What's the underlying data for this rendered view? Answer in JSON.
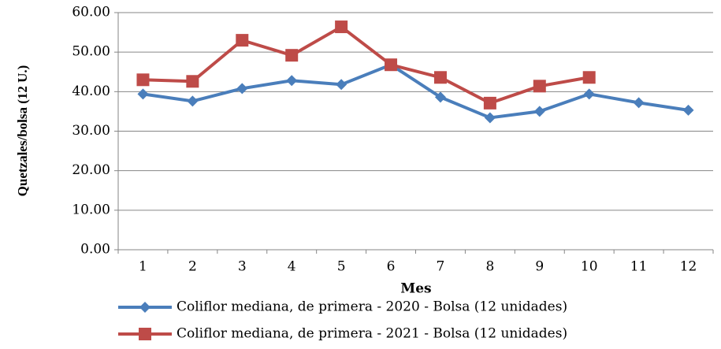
{
  "chart_data": {
    "type": "line",
    "categories": [
      "1",
      "2",
      "3",
      "4",
      "5",
      "6",
      "7",
      "8",
      "9",
      "10",
      "11",
      "12"
    ],
    "x_label": "Mes",
    "y_label": "Quetzales/bolsa (12 U.)",
    "ylim": [
      0,
      60
    ],
    "yticks": [
      {
        "value": 0,
        "label": "0.00"
      },
      {
        "value": 10,
        "label": "10.00"
      },
      {
        "value": 20,
        "label": "20.00"
      },
      {
        "value": 30,
        "label": "30.00"
      },
      {
        "value": 40,
        "label": "40.00"
      },
      {
        "value": 50,
        "label": "50.00"
      },
      {
        "value": 60,
        "label": "60.00"
      }
    ],
    "grid": true,
    "legend": "bottom",
    "series": [
      {
        "name": "Coliflor mediana, de primera - 2020 - Bolsa (12 unidades)",
        "color": "#4a7ebb",
        "marker": "diamond",
        "values": [
          39.4,
          37.6,
          40.8,
          42.8,
          41.8,
          46.8,
          38.6,
          33.4,
          35.0,
          39.4,
          37.2,
          35.3
        ]
      },
      {
        "name": "Coliflor mediana, de primera - 2021 - Bolsa (12 unidades)",
        "color": "#be4b48",
        "marker": "square",
        "values": [
          43.0,
          42.6,
          53.0,
          49.2,
          56.4,
          46.8,
          43.6,
          37.1,
          41.4,
          43.6,
          null,
          null
        ]
      }
    ]
  }
}
